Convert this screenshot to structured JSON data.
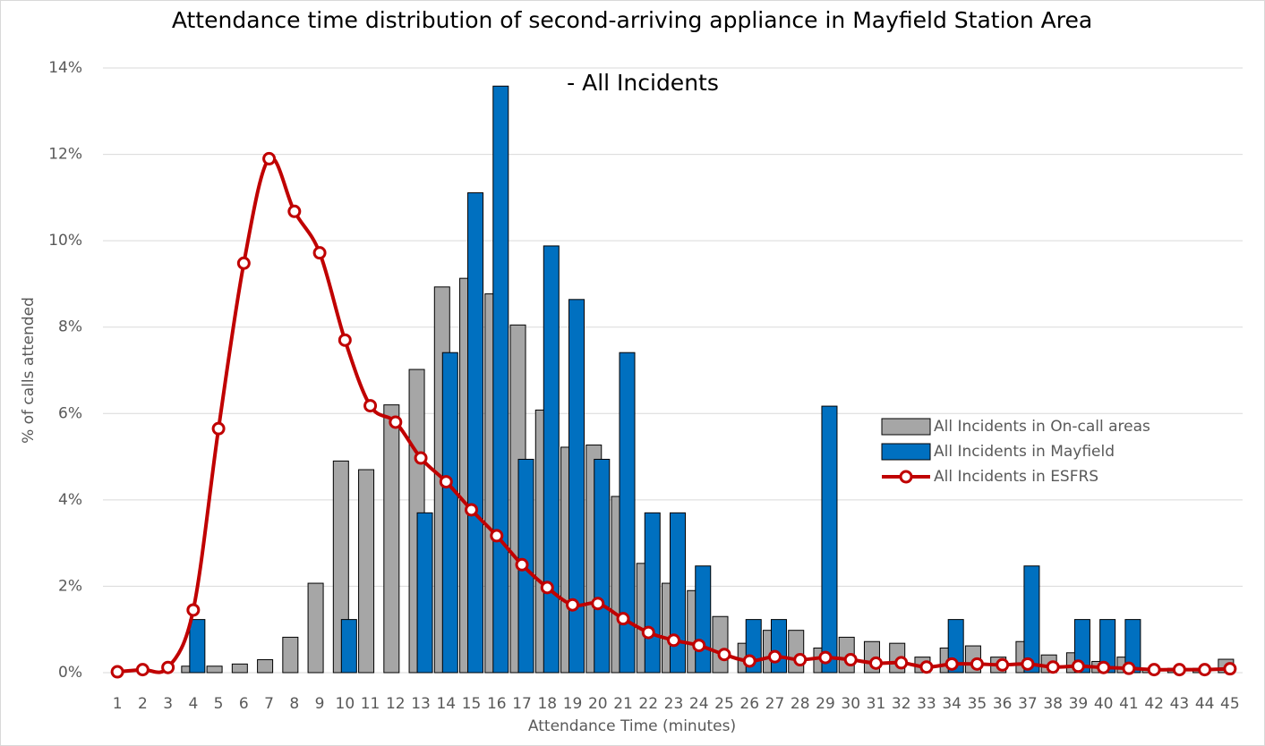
{
  "chart_data": {
    "type": "bar",
    "title": [
      "Attendance time distribution of second-arriving appliance in Mayfield Station Area",
      "- All Incidents"
    ],
    "x_label": "Attendance Time (minutes)",
    "y_label": "% of calls attended",
    "categories": [
      "1",
      "2",
      "3",
      "4",
      "5",
      "6",
      "7",
      "8",
      "9",
      "10",
      "11",
      "12",
      "13",
      "14",
      "15",
      "16",
      "17",
      "18",
      "19",
      "20",
      "21",
      "22",
      "23",
      "24",
      "25",
      "26",
      "27",
      "28",
      "29",
      "30",
      "31",
      "32",
      "33",
      "34",
      "35",
      "36",
      "37",
      "38",
      "39",
      "40",
      "41",
      "42",
      "43",
      "44",
      "45"
    ],
    "ylim": [
      0,
      14
    ],
    "yticks": [
      {
        "value": 0,
        "label": "0%"
      },
      {
        "value": 2,
        "label": "2%"
      },
      {
        "value": 4,
        "label": "4%"
      },
      {
        "value": 6,
        "label": "6%"
      },
      {
        "value": 8,
        "label": "8%"
      },
      {
        "value": 10,
        "label": "10%"
      },
      {
        "value": 12,
        "label": "12%"
      },
      {
        "value": 14,
        "label": "14%"
      }
    ],
    "grid": true,
    "legend": "right",
    "series": [
      {
        "name": "All Incidents in On-call areas",
        "type": "bar",
        "color": "#a6a6a6",
        "values": [
          0,
          0,
          0,
          0.15,
          0.15,
          0.2,
          0.3,
          0.82,
          2.07,
          4.9,
          4.7,
          6.2,
          7.02,
          8.93,
          9.13,
          8.77,
          8.05,
          6.08,
          5.22,
          5.27,
          4.08,
          2.53,
          2.07,
          1.9,
          1.3,
          0.68,
          0.98,
          0.98,
          0.57,
          0.82,
          0.72,
          0.68,
          0.36,
          0.57,
          0.62,
          0.36,
          0.72,
          0.41,
          0.46,
          0.26,
          0.36,
          0.1,
          0.1,
          0.1,
          0.31
        ]
      },
      {
        "name": "All Incidents in Mayfield",
        "type": "bar",
        "color": "#0070c0",
        "values": [
          0,
          0,
          0,
          1.23,
          0,
          0,
          0,
          0,
          0,
          1.23,
          0,
          0,
          3.7,
          7.41,
          11.11,
          13.58,
          4.94,
          9.88,
          8.64,
          4.94,
          7.41,
          3.7,
          3.7,
          2.47,
          0,
          1.23,
          1.23,
          0,
          6.17,
          0,
          0,
          0,
          0,
          1.23,
          0,
          0,
          2.47,
          0,
          1.23,
          1.23,
          1.23,
          0,
          0,
          0,
          0
        ]
      },
      {
        "name": "All Incidents in ESFRS",
        "type": "line",
        "color": "#c00000",
        "values": [
          0.02,
          0.07,
          0.12,
          1.45,
          5.65,
          9.48,
          11.9,
          10.68,
          9.72,
          7.7,
          6.18,
          5.8,
          4.97,
          4.42,
          3.77,
          3.17,
          2.5,
          1.97,
          1.57,
          1.6,
          1.25,
          0.93,
          0.75,
          0.63,
          0.42,
          0.27,
          0.37,
          0.3,
          0.35,
          0.3,
          0.22,
          0.23,
          0.13,
          0.2,
          0.2,
          0.18,
          0.2,
          0.13,
          0.15,
          0.12,
          0.1,
          0.07,
          0.07,
          0.07,
          0.09
        ]
      }
    ]
  }
}
